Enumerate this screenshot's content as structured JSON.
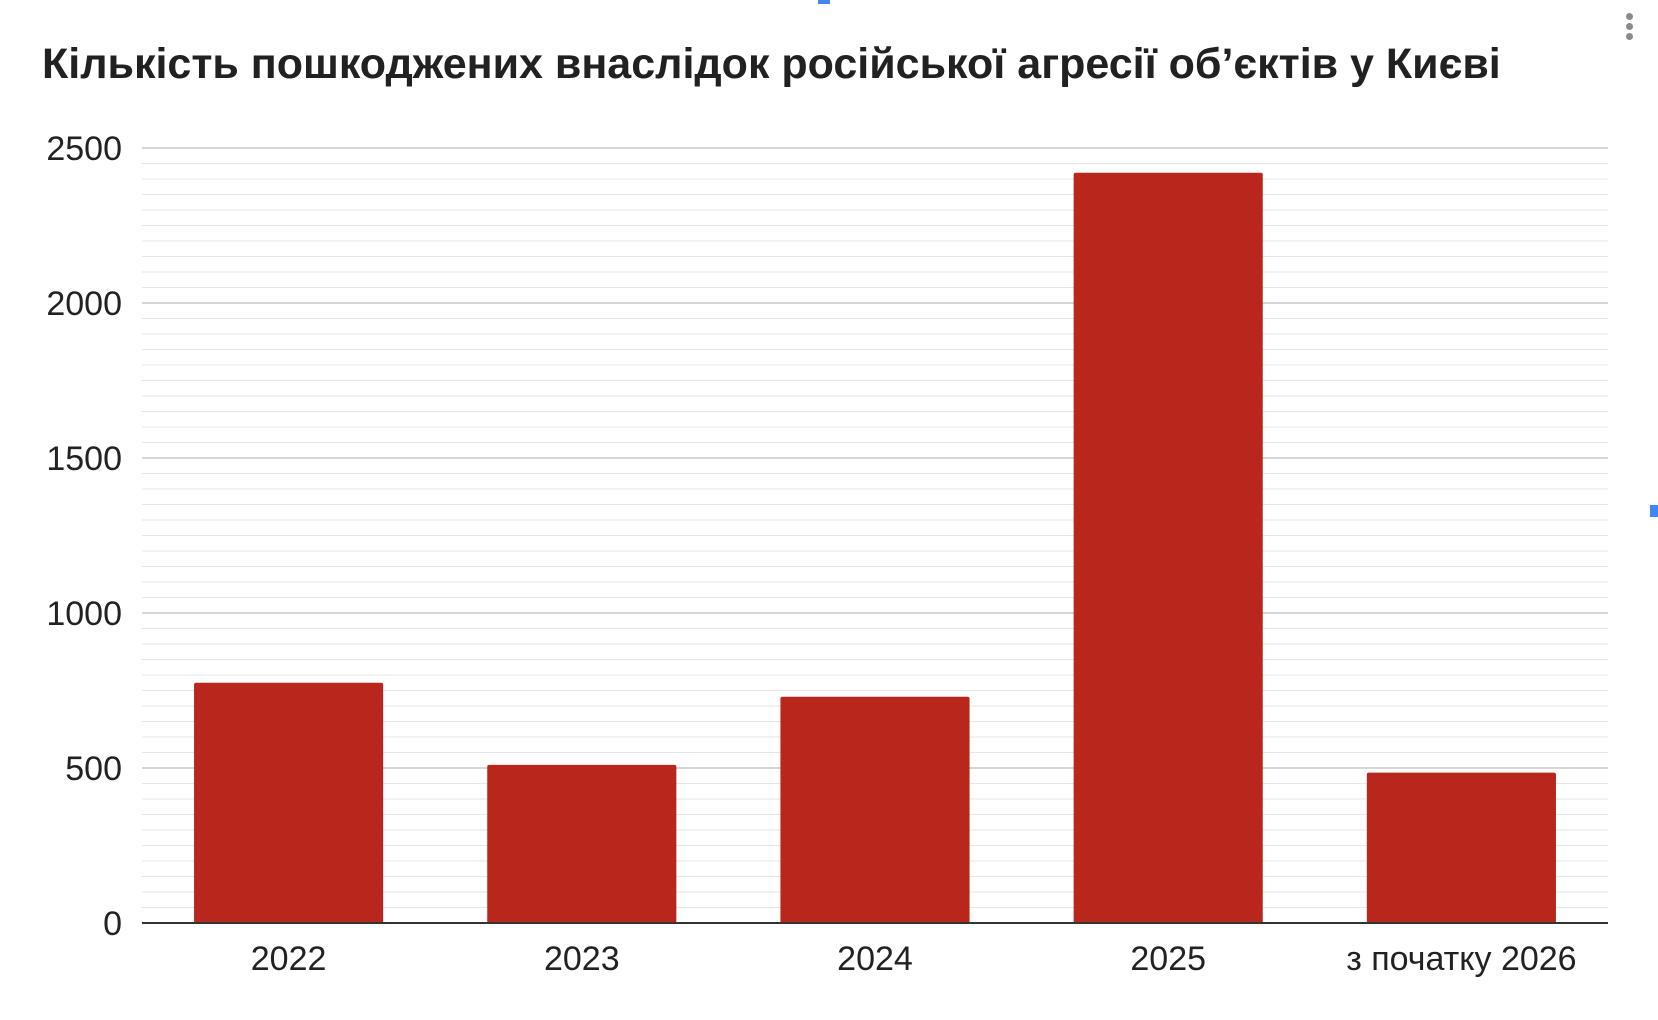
{
  "chart_data": {
    "type": "bar",
    "title": "Кількість пошкоджених внаслідок російської агресії об’єктів у Києві",
    "categories": [
      "2022",
      "2023",
      "2024",
      "2025",
      "з початку 2026"
    ],
    "values": [
      775,
      510,
      730,
      2420,
      485
    ],
    "xlabel": "",
    "ylabel": "",
    "ylim": [
      0,
      2500
    ],
    "yticks": [
      0,
      500,
      1000,
      1500,
      2000,
      2500
    ],
    "minor_ticks_per_major": 10,
    "grid": true,
    "legend": "none",
    "bar_color": "#b8261c"
  },
  "menu": {
    "icon": "more-vert-icon"
  }
}
